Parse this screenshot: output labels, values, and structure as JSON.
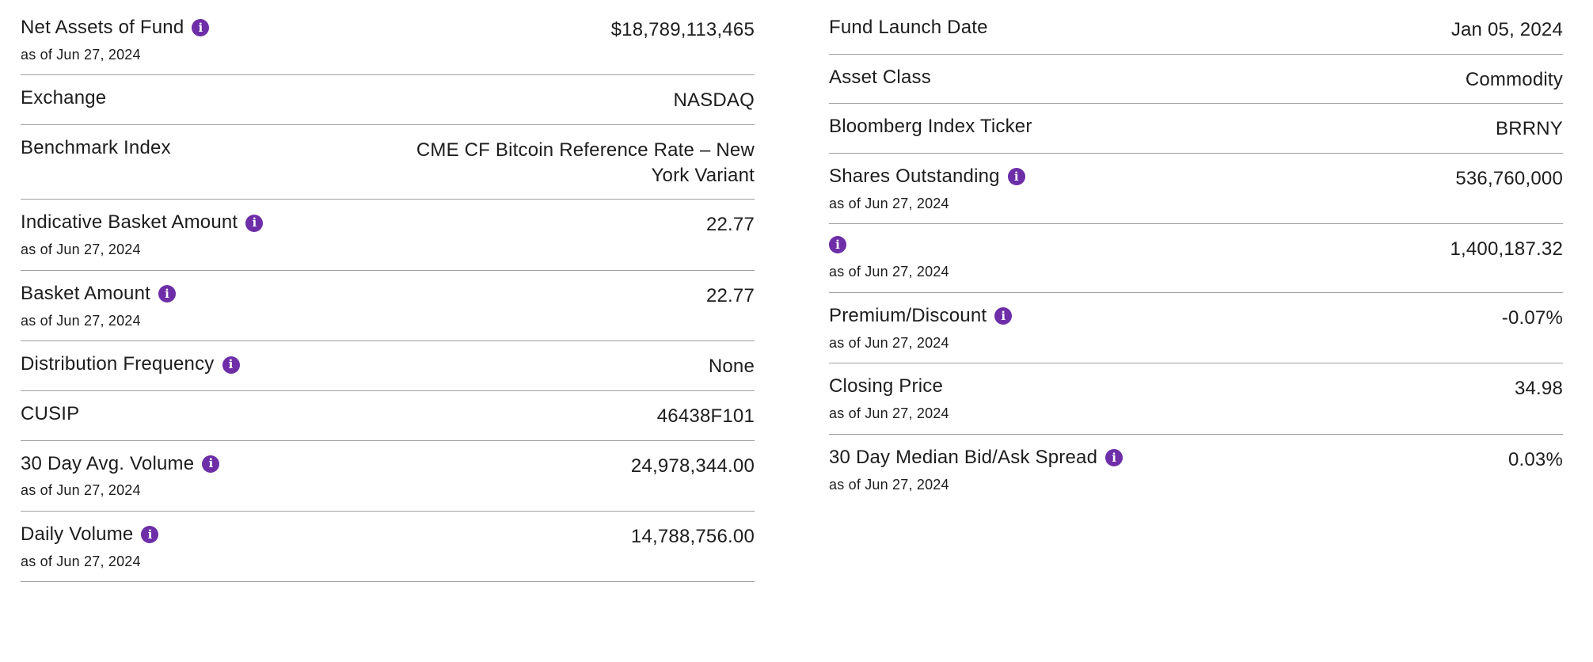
{
  "colors": {
    "accent_purple": "#6d2ea8",
    "text": "#1d1d1d",
    "divider": "#9f9f9f"
  },
  "icons": {
    "info_glyph": "i"
  },
  "left": {
    "rows": [
      {
        "label": "Net Assets of Fund",
        "as_of": "as of Jun 27, 2024",
        "value": "$18,789,113,465"
      },
      {
        "label": "Exchange",
        "as_of": "",
        "value": "NASDAQ"
      },
      {
        "label": "Benchmark Index",
        "as_of": "",
        "value": "CME CF Bitcoin Reference Rate – New York Variant"
      },
      {
        "label": "Indicative Basket Amount",
        "as_of": "as of Jun 27, 2024",
        "value": "22.77"
      },
      {
        "label": "Basket Amount",
        "as_of": "as of Jun 27, 2024",
        "value": "22.77"
      },
      {
        "label": "Distribution Frequency",
        "as_of": "",
        "value": "None"
      },
      {
        "label": "CUSIP",
        "as_of": "",
        "value": "46438F101"
      },
      {
        "label": "30 Day Avg. Volume",
        "as_of": "as of Jun 27, 2024",
        "value": "24,978,344.00"
      },
      {
        "label": "Daily Volume",
        "as_of": "as of Jun 27, 2024",
        "value": "14,788,756.00"
      }
    ]
  },
  "right": {
    "rows": [
      {
        "label": "Fund Launch Date",
        "as_of": "",
        "value": "Jan 05, 2024"
      },
      {
        "label": "Asset Class",
        "as_of": "",
        "value": "Commodity"
      },
      {
        "label": "Bloomberg Index Ticker",
        "as_of": "",
        "value": "BRRNY"
      },
      {
        "label": "Shares Outstanding",
        "as_of": "as of Jun 27, 2024",
        "value": "536,760,000"
      },
      {
        "label": "",
        "as_of": "as of Jun 27, 2024",
        "value": "1,400,187.32"
      },
      {
        "label": "Premium/Discount",
        "as_of": "as of Jun 27, 2024",
        "value": "-0.07%"
      },
      {
        "label": "Closing Price",
        "as_of": "as of Jun 27, 2024",
        "value": "34.98"
      },
      {
        "label": "30 Day Median Bid/Ask Spread",
        "as_of": "as of Jun 27, 2024",
        "value": "0.03%"
      }
    ]
  }
}
